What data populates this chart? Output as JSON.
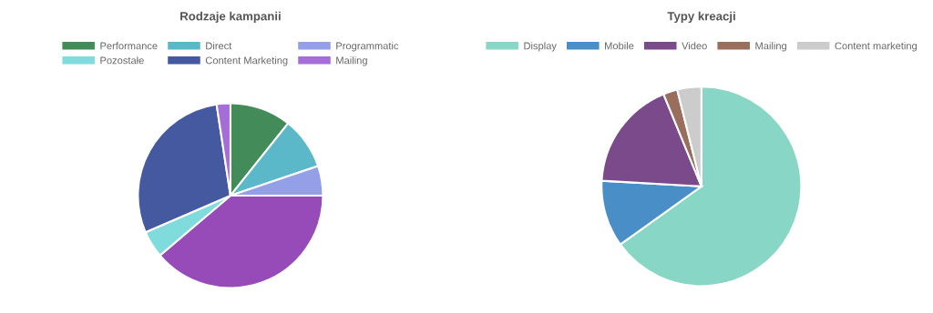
{
  "chart_data": [
    {
      "type": "pie",
      "title": "Rodzaje kampanii",
      "legend": "top",
      "categories": [
        "Performance",
        "Direct",
        "Programmatic",
        null,
        "Pozostałe",
        "Content Marketing",
        "Mailing"
      ],
      "values": [
        10.7,
        9.1,
        5.2,
        38.8,
        4.7,
        29.1,
        2.4
      ],
      "colors": [
        "#438c5a",
        "#5bb8c8",
        "#939fe6",
        "#974bb8",
        "#80dcdc",
        "#4459a0",
        "#a56dd8"
      ]
    },
    {
      "type": "pie",
      "title": "Typy kreacji",
      "legend": "top",
      "categories": [
        "Display",
        "Mobile",
        "Video",
        "Mailing",
        "Content marketing"
      ],
      "values": [
        65.1,
        10.8,
        17.9,
        2.3,
        3.9
      ],
      "colors": [
        "#88d6c5",
        "#4a8ec8",
        "#7b4a8a",
        "#9a6e5c",
        "#cccccc"
      ]
    }
  ]
}
